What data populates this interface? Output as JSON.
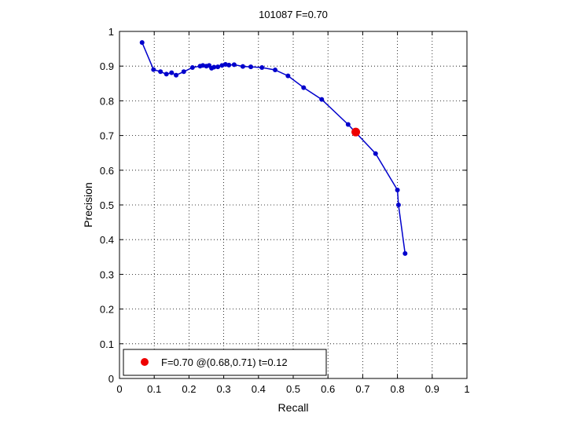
{
  "chart_data": {
    "type": "line",
    "title": "101087 F=0.70",
    "xlabel": "Recall",
    "ylabel": "Precision",
    "xlim": [
      0,
      1
    ],
    "ylim": [
      0,
      1
    ],
    "grid": true,
    "x_ticks": [
      "0",
      "0.1",
      "0.2",
      "0.3",
      "0.4",
      "0.5",
      "0.6",
      "0.7",
      "0.8",
      "0.9",
      "1"
    ],
    "y_ticks": [
      "0",
      "0.1",
      "0.2",
      "0.3",
      "0.4",
      "0.5",
      "0.6",
      "0.7",
      "0.8",
      "0.9",
      "1"
    ],
    "series": [
      {
        "color": "#0000cc",
        "marker": "dot",
        "points": [
          [
            0.065,
            0.968
          ],
          [
            0.098,
            0.89
          ],
          [
            0.118,
            0.884
          ],
          [
            0.135,
            0.877
          ],
          [
            0.15,
            0.881
          ],
          [
            0.163,
            0.874
          ],
          [
            0.185,
            0.884
          ],
          [
            0.21,
            0.896
          ],
          [
            0.232,
            0.9
          ],
          [
            0.24,
            0.902
          ],
          [
            0.25,
            0.9
          ],
          [
            0.258,
            0.902
          ],
          [
            0.265,
            0.894
          ],
          [
            0.272,
            0.897
          ],
          [
            0.283,
            0.898
          ],
          [
            0.295,
            0.902
          ],
          [
            0.305,
            0.905
          ],
          [
            0.315,
            0.903
          ],
          [
            0.33,
            0.904
          ],
          [
            0.355,
            0.899
          ],
          [
            0.378,
            0.898
          ],
          [
            0.41,
            0.896
          ],
          [
            0.448,
            0.889
          ],
          [
            0.485,
            0.872
          ],
          [
            0.53,
            0.838
          ],
          [
            0.582,
            0.804
          ],
          [
            0.658,
            0.732
          ],
          [
            0.737,
            0.648
          ],
          [
            0.8,
            0.543
          ],
          [
            0.803,
            0.5
          ],
          [
            0.822,
            0.36
          ]
        ]
      }
    ],
    "best_point": {
      "recall": 0.68,
      "precision": 0.71,
      "color": "#ee0000"
    },
    "legend": {
      "placement": "bottom-left",
      "entries": [
        {
          "label": "F=0.70 @(0.68,0.71) t=0.12",
          "color": "#ee0000",
          "marker": "dot"
        }
      ]
    }
  }
}
